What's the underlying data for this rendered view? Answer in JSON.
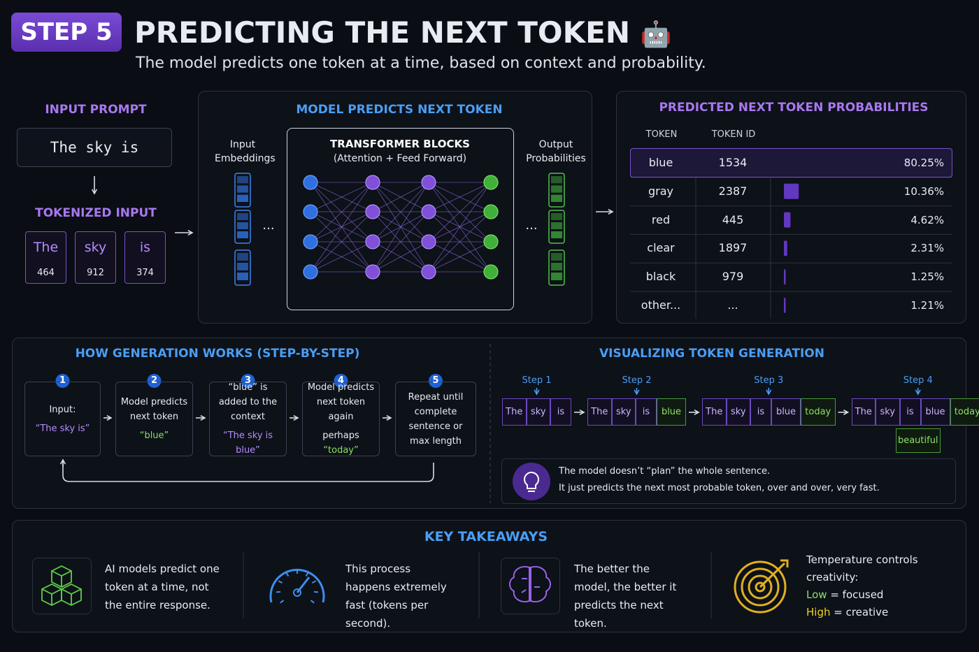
{
  "header": {
    "badge": "STEP 5",
    "title": "PREDICTING THE NEXT TOKEN",
    "icon": "🤖",
    "subtitle": "The model predicts one token at a time, based on context and probability."
  },
  "input_panel": {
    "prompt_heading": "INPUT PROMPT",
    "prompt": "The sky is",
    "tokenized_heading": "TOKENIZED INPUT",
    "tokens": [
      {
        "text": "The",
        "id": "464"
      },
      {
        "text": "sky",
        "id": "912"
      },
      {
        "text": "is",
        "id": "374"
      }
    ]
  },
  "model_panel": {
    "heading": "MODEL PREDICTS NEXT TOKEN",
    "input_label": "Input Embeddings",
    "block_title": "TRANSFORMER BLOCKS",
    "block_subtitle": "(Attention + Feed Forward)",
    "output_label": "Output Probabilities",
    "ellipsis": "..."
  },
  "probabilities": {
    "heading": "PREDICTED NEXT TOKEN PROBABILITIES",
    "columns": [
      "TOKEN",
      "TOKEN ID"
    ],
    "rows": [
      {
        "token": "blue",
        "id": "1534",
        "probability": 80.25,
        "probability_label": "80.25%"
      },
      {
        "token": "gray",
        "id": "2387",
        "probability": 10.36,
        "probability_label": "10.36%"
      },
      {
        "token": "red",
        "id": "445",
        "probability": 4.62,
        "probability_label": "4.62%"
      },
      {
        "token": "clear",
        "id": "1897",
        "probability": 2.31,
        "probability_label": "2.31%"
      },
      {
        "token": "black",
        "id": "979",
        "probability": 1.25,
        "probability_label": "1.25%"
      },
      {
        "token": "other...",
        "id": "...",
        "probability": 1.21,
        "probability_label": "1.21%"
      }
    ]
  },
  "generation": {
    "heading": "HOW GENERATION WORKS (STEP-BY-STEP)",
    "steps": [
      {
        "number": "1",
        "text": "Input:",
        "highlight": "“The sky is”",
        "highlight_color": "#b48cff"
      },
      {
        "number": "2",
        "text": "Model predicts next token",
        "highlight": "“blue”",
        "highlight_color": "#86e060"
      },
      {
        "number": "3",
        "text": "“blue” is added to the context",
        "highlight": "“The sky is blue”",
        "highlight_color": "#b48cff"
      },
      {
        "number": "4",
        "text": "Model predicts next token again",
        "prefix": "perhaps",
        "highlight": "“today”",
        "highlight_color": "#86e060"
      },
      {
        "number": "5",
        "text": "Repeat until complete sentence or max length"
      }
    ]
  },
  "visualization": {
    "heading": "VISUALIZING TOKEN GENERATION",
    "steps": [
      {
        "label": "Step 1",
        "context": [
          "The",
          "sky",
          "is"
        ],
        "new": []
      },
      {
        "label": "Step 2",
        "context": [
          "The",
          "sky",
          "is"
        ],
        "new": [
          "blue"
        ]
      },
      {
        "label": "Step 3",
        "context": [
          "The",
          "sky",
          "is",
          "blue"
        ],
        "new": [
          "today"
        ]
      },
      {
        "label": "Step 4",
        "context": [
          "The",
          "sky",
          "is",
          "blue"
        ],
        "new": [
          "today"
        ],
        "candidate": "beautiful"
      }
    ],
    "ellipsis": "...",
    "note_lines": [
      "The model doesn’t “plan” the whole sentence.",
      "It just predicts the next most probable token, over and over, very fast."
    ]
  },
  "takeaways": {
    "heading": "KEY TAKEAWAYS",
    "items": [
      {
        "text": "AI models predict one token at a time, not the entire response."
      },
      {
        "text": "This process happens extremely fast (tokens per second)."
      },
      {
        "text": "The better the model, the better it predicts the next token."
      },
      {
        "text": "Temperature controls creativity:",
        "low": "Low",
        "low_text": "= focused",
        "high": "High",
        "high_text": "= creative"
      }
    ]
  }
}
